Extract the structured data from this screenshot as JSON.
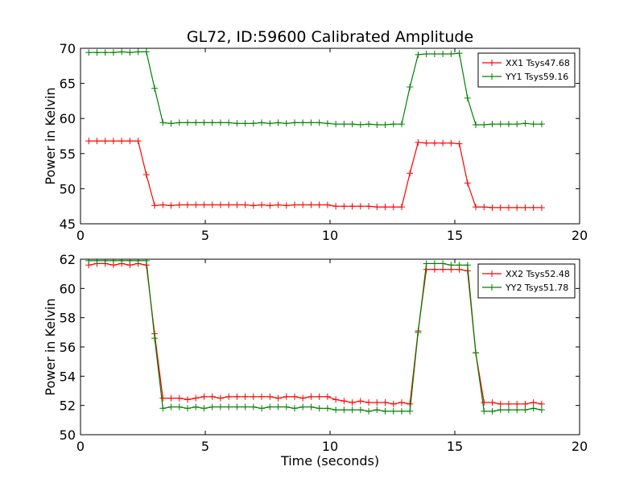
{
  "figure": {
    "title": "GL72, ID:59600 Calibrated Amplitude",
    "xlabel": "Time (seconds)",
    "colors": {
      "xx": "#ff0000",
      "yy": "#008000",
      "axes": "#000000",
      "legend_border": "#000000"
    }
  },
  "chart_data": [
    {
      "type": "line",
      "title": "GL72, ID:59600 Calibrated Amplitude",
      "xlabel": "",
      "ylabel": "Power in Kelvin",
      "xlim": [
        0,
        20
      ],
      "ylim": [
        45,
        70
      ],
      "xticks": [
        0,
        5,
        10,
        15,
        20
      ],
      "yticks": [
        45,
        50,
        55,
        60,
        65,
        70
      ],
      "legend": "top-right",
      "x": [
        0.33,
        0.66,
        0.99,
        1.32,
        1.65,
        1.98,
        2.31,
        2.64,
        2.97,
        3.3,
        3.63,
        3.96,
        4.29,
        4.62,
        4.95,
        5.28,
        5.61,
        5.94,
        6.27,
        6.6,
        6.93,
        7.26,
        7.59,
        7.92,
        8.25,
        8.58,
        8.91,
        9.24,
        9.57,
        9.9,
        10.23,
        10.56,
        10.89,
        11.22,
        11.55,
        11.88,
        12.21,
        12.54,
        12.87,
        13.2,
        13.53,
        13.86,
        14.19,
        14.52,
        14.85,
        15.18,
        15.51,
        15.84,
        16.17,
        16.5,
        16.83,
        17.16,
        17.49,
        17.82,
        18.15,
        18.48
      ],
      "series": [
        {
          "name": "XX1 Tsys47.68",
          "color": "#ff0000",
          "values": [
            56.8,
            56.8,
            56.8,
            56.8,
            56.8,
            56.8,
            56.8,
            52.0,
            47.6,
            47.7,
            47.6,
            47.7,
            47.7,
            47.7,
            47.7,
            47.7,
            47.7,
            47.7,
            47.7,
            47.7,
            47.6,
            47.7,
            47.6,
            47.7,
            47.6,
            47.7,
            47.7,
            47.7,
            47.7,
            47.7,
            47.5,
            47.5,
            47.5,
            47.5,
            47.5,
            47.4,
            47.4,
            47.4,
            47.4,
            52.2,
            56.6,
            56.5,
            56.5,
            56.5,
            56.5,
            56.4,
            50.8,
            47.4,
            47.4,
            47.3,
            47.3,
            47.3,
            47.3,
            47.3,
            47.3,
            47.3
          ]
        },
        {
          "name": "YY1 Tsys59.16",
          "color": "#008000",
          "values": [
            69.4,
            69.4,
            69.4,
            69.4,
            69.5,
            69.4,
            69.5,
            69.5,
            64.3,
            59.4,
            59.3,
            59.4,
            59.4,
            59.4,
            59.4,
            59.4,
            59.4,
            59.4,
            59.3,
            59.3,
            59.3,
            59.4,
            59.3,
            59.4,
            59.3,
            59.4,
            59.4,
            59.4,
            59.4,
            59.3,
            59.2,
            59.2,
            59.2,
            59.1,
            59.2,
            59.1,
            59.1,
            59.2,
            59.2,
            64.5,
            69.1,
            69.2,
            69.2,
            69.2,
            69.2,
            69.3,
            62.9,
            59.1,
            59.1,
            59.2,
            59.2,
            59.2,
            59.2,
            59.3,
            59.2,
            59.2
          ]
        }
      ]
    },
    {
      "type": "line",
      "title": "",
      "xlabel": "Time (seconds)",
      "ylabel": "Power in Kelvin",
      "xlim": [
        0,
        20
      ],
      "ylim": [
        50,
        62
      ],
      "xticks": [
        0,
        5,
        10,
        15,
        20
      ],
      "yticks": [
        50,
        52,
        54,
        56,
        58,
        60,
        62
      ],
      "legend": "top-right",
      "x": [
        0.33,
        0.66,
        0.99,
        1.32,
        1.65,
        1.98,
        2.31,
        2.64,
        2.97,
        3.3,
        3.63,
        3.96,
        4.29,
        4.62,
        4.95,
        5.28,
        5.61,
        5.94,
        6.27,
        6.6,
        6.93,
        7.26,
        7.59,
        7.92,
        8.25,
        8.58,
        8.91,
        9.24,
        9.57,
        9.9,
        10.23,
        10.56,
        10.89,
        11.22,
        11.55,
        11.88,
        12.21,
        12.54,
        12.87,
        13.2,
        13.53,
        13.86,
        14.19,
        14.52,
        14.85,
        15.18,
        15.51,
        15.84,
        16.17,
        16.5,
        16.83,
        17.16,
        17.49,
        17.82,
        18.15,
        18.48
      ],
      "series": [
        {
          "name": "XX2 Tsys52.48",
          "color": "#ff0000",
          "values": [
            61.6,
            61.7,
            61.7,
            61.6,
            61.7,
            61.6,
            61.7,
            61.6,
            56.9,
            52.5,
            52.5,
            52.5,
            52.4,
            52.5,
            52.6,
            52.6,
            52.5,
            52.6,
            52.6,
            52.6,
            52.6,
            52.6,
            52.6,
            52.5,
            52.6,
            52.6,
            52.5,
            52.6,
            52.6,
            52.6,
            52.4,
            52.3,
            52.2,
            52.3,
            52.2,
            52.2,
            52.2,
            52.1,
            52.2,
            52.1,
            57.1,
            61.3,
            61.3,
            61.3,
            61.3,
            61.3,
            61.2,
            55.6,
            52.2,
            52.2,
            52.1,
            52.1,
            52.1,
            52.1,
            52.2,
            52.1
          ]
        },
        {
          "name": "YY2 Tsys51.78",
          "color": "#008000",
          "values": [
            61.9,
            61.9,
            61.9,
            61.9,
            61.9,
            61.9,
            61.9,
            61.9,
            56.6,
            51.8,
            51.9,
            51.9,
            51.8,
            51.9,
            51.8,
            51.9,
            51.9,
            51.9,
            51.9,
            51.9,
            51.9,
            51.8,
            51.9,
            51.9,
            51.9,
            51.8,
            51.9,
            51.9,
            51.8,
            51.8,
            51.7,
            51.7,
            51.7,
            51.7,
            51.6,
            51.7,
            51.6,
            51.6,
            51.6,
            51.6,
            57.0,
            61.7,
            61.7,
            61.7,
            61.6,
            61.6,
            61.6,
            55.6,
            51.6,
            51.6,
            51.7,
            51.7,
            51.7,
            51.7,
            51.8,
            51.7
          ]
        }
      ]
    }
  ]
}
